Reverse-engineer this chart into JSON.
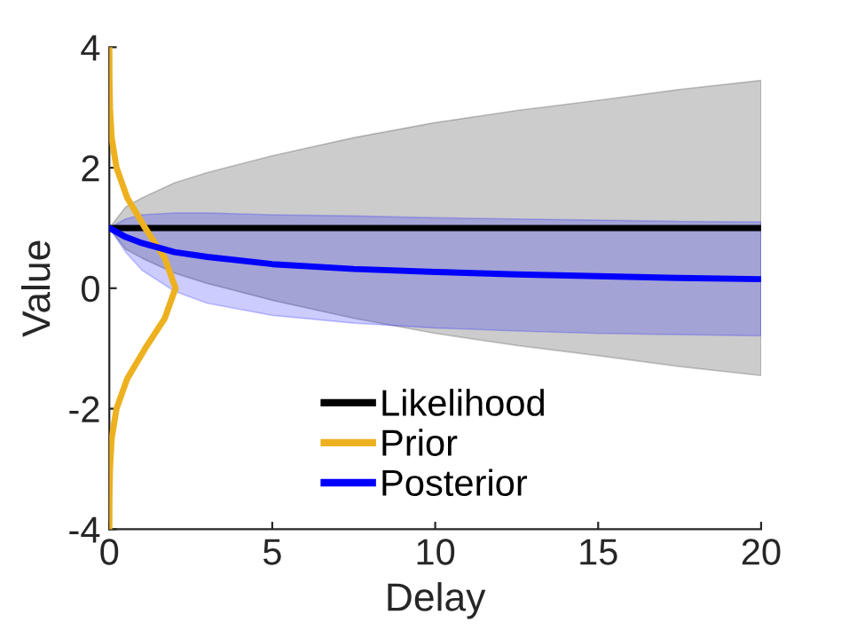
{
  "chart_data": {
    "type": "line",
    "xlabel": "Delay",
    "ylabel": "Value",
    "xlim": [
      0,
      20
    ],
    "ylim": [
      -4,
      4
    ],
    "xticks": [
      0,
      5,
      10,
      15,
      20
    ],
    "yticks": [
      -4,
      -2,
      0,
      2,
      4
    ],
    "grid": false,
    "legend": "bottom",
    "line_style": "solid",
    "marker": "none",
    "series": [
      {
        "name": "Likelihood",
        "color": "#000000",
        "x": [
          0,
          0.5,
          1,
          2,
          3,
          5,
          7.5,
          10,
          12.5,
          15,
          17.5,
          20
        ],
        "values": [
          1,
          1,
          1,
          1,
          1,
          1,
          1,
          1,
          1,
          1,
          1,
          1
        ],
        "lower": [
          1,
          0.65,
          0.5,
          0.25,
          0.08,
          -0.2,
          -0.5,
          -0.75,
          -0.95,
          -1.12,
          -1.3,
          -1.45
        ],
        "upper": [
          1,
          1.35,
          1.5,
          1.75,
          1.92,
          2.2,
          2.5,
          2.75,
          2.95,
          3.12,
          3.3,
          3.45
        ]
      },
      {
        "name": "Prior",
        "color": "#edb120",
        "x": [
          0,
          0.003,
          0.02,
          0.07,
          0.22,
          0.55,
          1.1,
          1.7,
          2.03,
          1.7,
          1.1,
          0.55,
          0.22,
          0.07,
          0.02,
          0.003,
          0
        ],
        "values": [
          -4,
          -3.5,
          -3,
          -2.5,
          -2,
          -1.5,
          -1,
          -0.5,
          0,
          0.5,
          1,
          1.5,
          2,
          2.5,
          3,
          3.5,
          4
        ]
      },
      {
        "name": "Posterior",
        "color": "#0000ff",
        "x": [
          0,
          0.5,
          1,
          2,
          3,
          5,
          7.5,
          10,
          12.5,
          15,
          17.5,
          20
        ],
        "values": [
          1,
          0.85,
          0.75,
          0.6,
          0.52,
          0.4,
          0.32,
          0.27,
          0.23,
          0.2,
          0.17,
          0.15
        ],
        "lower": [
          1,
          0.6,
          0.3,
          -0.05,
          -0.25,
          -0.45,
          -0.58,
          -0.66,
          -0.71,
          -0.75,
          -0.77,
          -0.79
        ],
        "upper": [
          1,
          1.15,
          1.22,
          1.25,
          1.25,
          1.22,
          1.2,
          1.17,
          1.15,
          1.13,
          1.11,
          1.1
        ]
      }
    ]
  }
}
